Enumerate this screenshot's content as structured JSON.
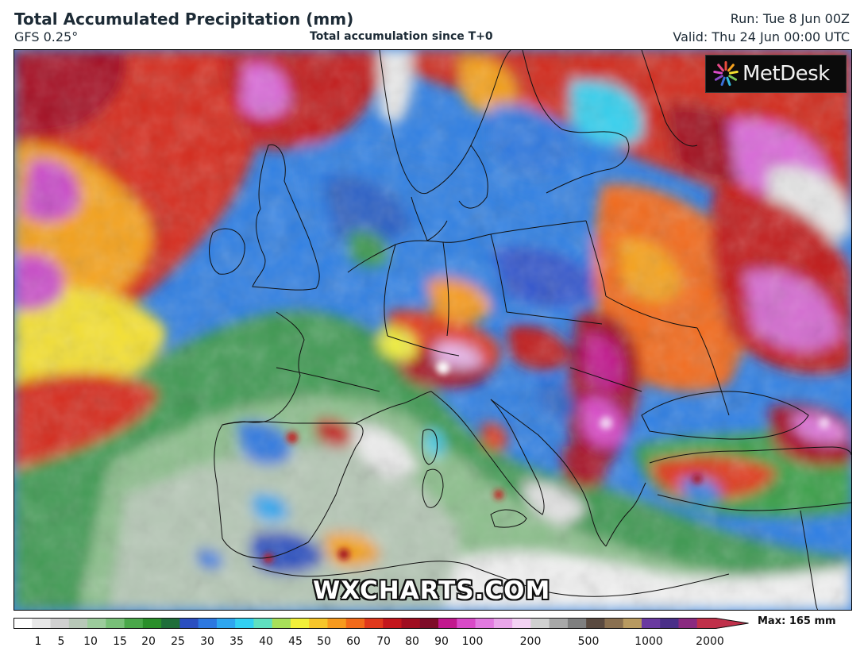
{
  "header": {
    "title": "Total Accumulated Precipitation (mm)",
    "model": "GFS 0.25°",
    "subtitle": "Total accumulation since T+0",
    "run": "Run: Tue 8 Jun 00Z",
    "valid": "Valid: Thu 24 Jun 00:00 UTC"
  },
  "map": {
    "region": "Europe",
    "logo": "MetDesk",
    "watermark": "WXCHARTS.COM"
  },
  "colorbar": {
    "tick_labels": [
      "1",
      "5",
      "10",
      "15",
      "20",
      "25",
      "30",
      "35",
      "40",
      "45",
      "50",
      "60",
      "70",
      "80",
      "90",
      "100",
      "200",
      "500",
      "1000",
      "2000"
    ],
    "max_label": "Max: 165 mm",
    "colors": [
      "#ffffff",
      "#e8e8e8",
      "#d0d0d0",
      "#b8c8b8",
      "#9ccc9c",
      "#78c078",
      "#4aa84a",
      "#2a8f2a",
      "#1f6e3a",
      "#2b4fc0",
      "#2d78e0",
      "#2fa6ef",
      "#33d0f2",
      "#5fe0c0",
      "#a8e05a",
      "#f2f03a",
      "#f7c52a",
      "#f79a1e",
      "#f26a1a",
      "#e0381c",
      "#c4161c",
      "#a00e20",
      "#7e0c28",
      "#c2188e",
      "#d94ac8",
      "#e27ae0",
      "#eaa6ea",
      "#f3d2f3",
      "#d0d0d0",
      "#a8a8a8",
      "#7f7f7f",
      "#5a4a40",
      "#8a7050",
      "#b89a60",
      "#6a3aa0",
      "#4a2f88",
      "#8a2a80",
      "#c0304a"
    ]
  }
}
